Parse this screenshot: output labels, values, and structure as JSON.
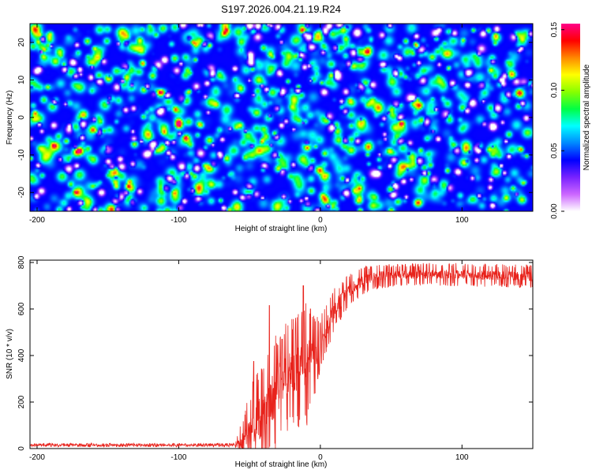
{
  "title": "S197.2026.004.21.19.R24",
  "chart_data": [
    {
      "type": "heatmap",
      "xlabel": "Height of straight line (km)",
      "ylabel": "Frequency (Hz)",
      "xlim": [
        -205,
        150
      ],
      "ylim": [
        -25,
        25
      ],
      "xticks": [
        -200,
        -100,
        0,
        100
      ],
      "xtick_labels": [
        "-200",
        "-100",
        "0",
        "100"
      ],
      "yticks": [
        -20,
        -10,
        0,
        10,
        20
      ],
      "ytick_labels": [
        "-20",
        "-10",
        "0",
        "10",
        "20"
      ],
      "colorbar": {
        "label": "Normalized spectral amplitude",
        "range": [
          0,
          0.155
        ],
        "ticks": [
          0.0,
          0.05,
          0.1,
          0.15
        ],
        "tick_labels": [
          "0.00",
          "0.05",
          "0.10",
          "0.15"
        ],
        "colors": [
          "#ffffff",
          "#cc66ff",
          "#7722ff",
          "#0000ff",
          "#0088ff",
          "#00ffff",
          "#00ff44",
          "#88ff00",
          "#ffff00",
          "#ff8800",
          "#ff0000",
          "#ff0088"
        ]
      },
      "background_color": "#3a10d0",
      "seed": 7
    },
    {
      "type": "line",
      "xlabel": "Height of straight line (km)",
      "ylabel": "SNR (10 * v/v)",
      "xlim": [
        -205,
        150
      ],
      "ylim": [
        0,
        810
      ],
      "xticks": [
        -200,
        -100,
        0,
        100
      ],
      "xtick_labels": [
        "-200",
        "-100",
        "0",
        "100"
      ],
      "yticks": [
        0,
        200,
        400,
        600,
        800
      ],
      "ytick_labels": [
        "0",
        "200",
        "400",
        "600",
        "800"
      ],
      "color": "#e8231c",
      "profile": {
        "x": [
          -205,
          -60,
          -50,
          -45,
          -40,
          -35,
          -30,
          -25,
          -20,
          -15,
          -10,
          -5,
          0,
          5,
          10,
          20,
          30,
          40,
          50,
          80,
          120,
          150
        ],
        "y": [
          15,
          15,
          40,
          120,
          140,
          200,
          260,
          300,
          330,
          340,
          360,
          400,
          450,
          530,
          600,
          680,
          720,
          740,
          745,
          750,
          745,
          740
        ]
      },
      "noise_amplitude": {
        "x": [
          -205,
          -60,
          -50,
          -40,
          -30,
          -20,
          -10,
          0,
          20,
          50,
          150
        ],
        "y": [
          8,
          8,
          200,
          260,
          260,
          230,
          280,
          120,
          70,
          50,
          50
        ]
      },
      "spikes": [
        {
          "x": -47,
          "y": 375
        },
        {
          "x": -36,
          "y": 615
        },
        {
          "x": -27,
          "y": 470
        },
        {
          "x": -12,
          "y": 700
        },
        {
          "x": -7,
          "y": 600
        }
      ],
      "samples": 1800
    }
  ]
}
